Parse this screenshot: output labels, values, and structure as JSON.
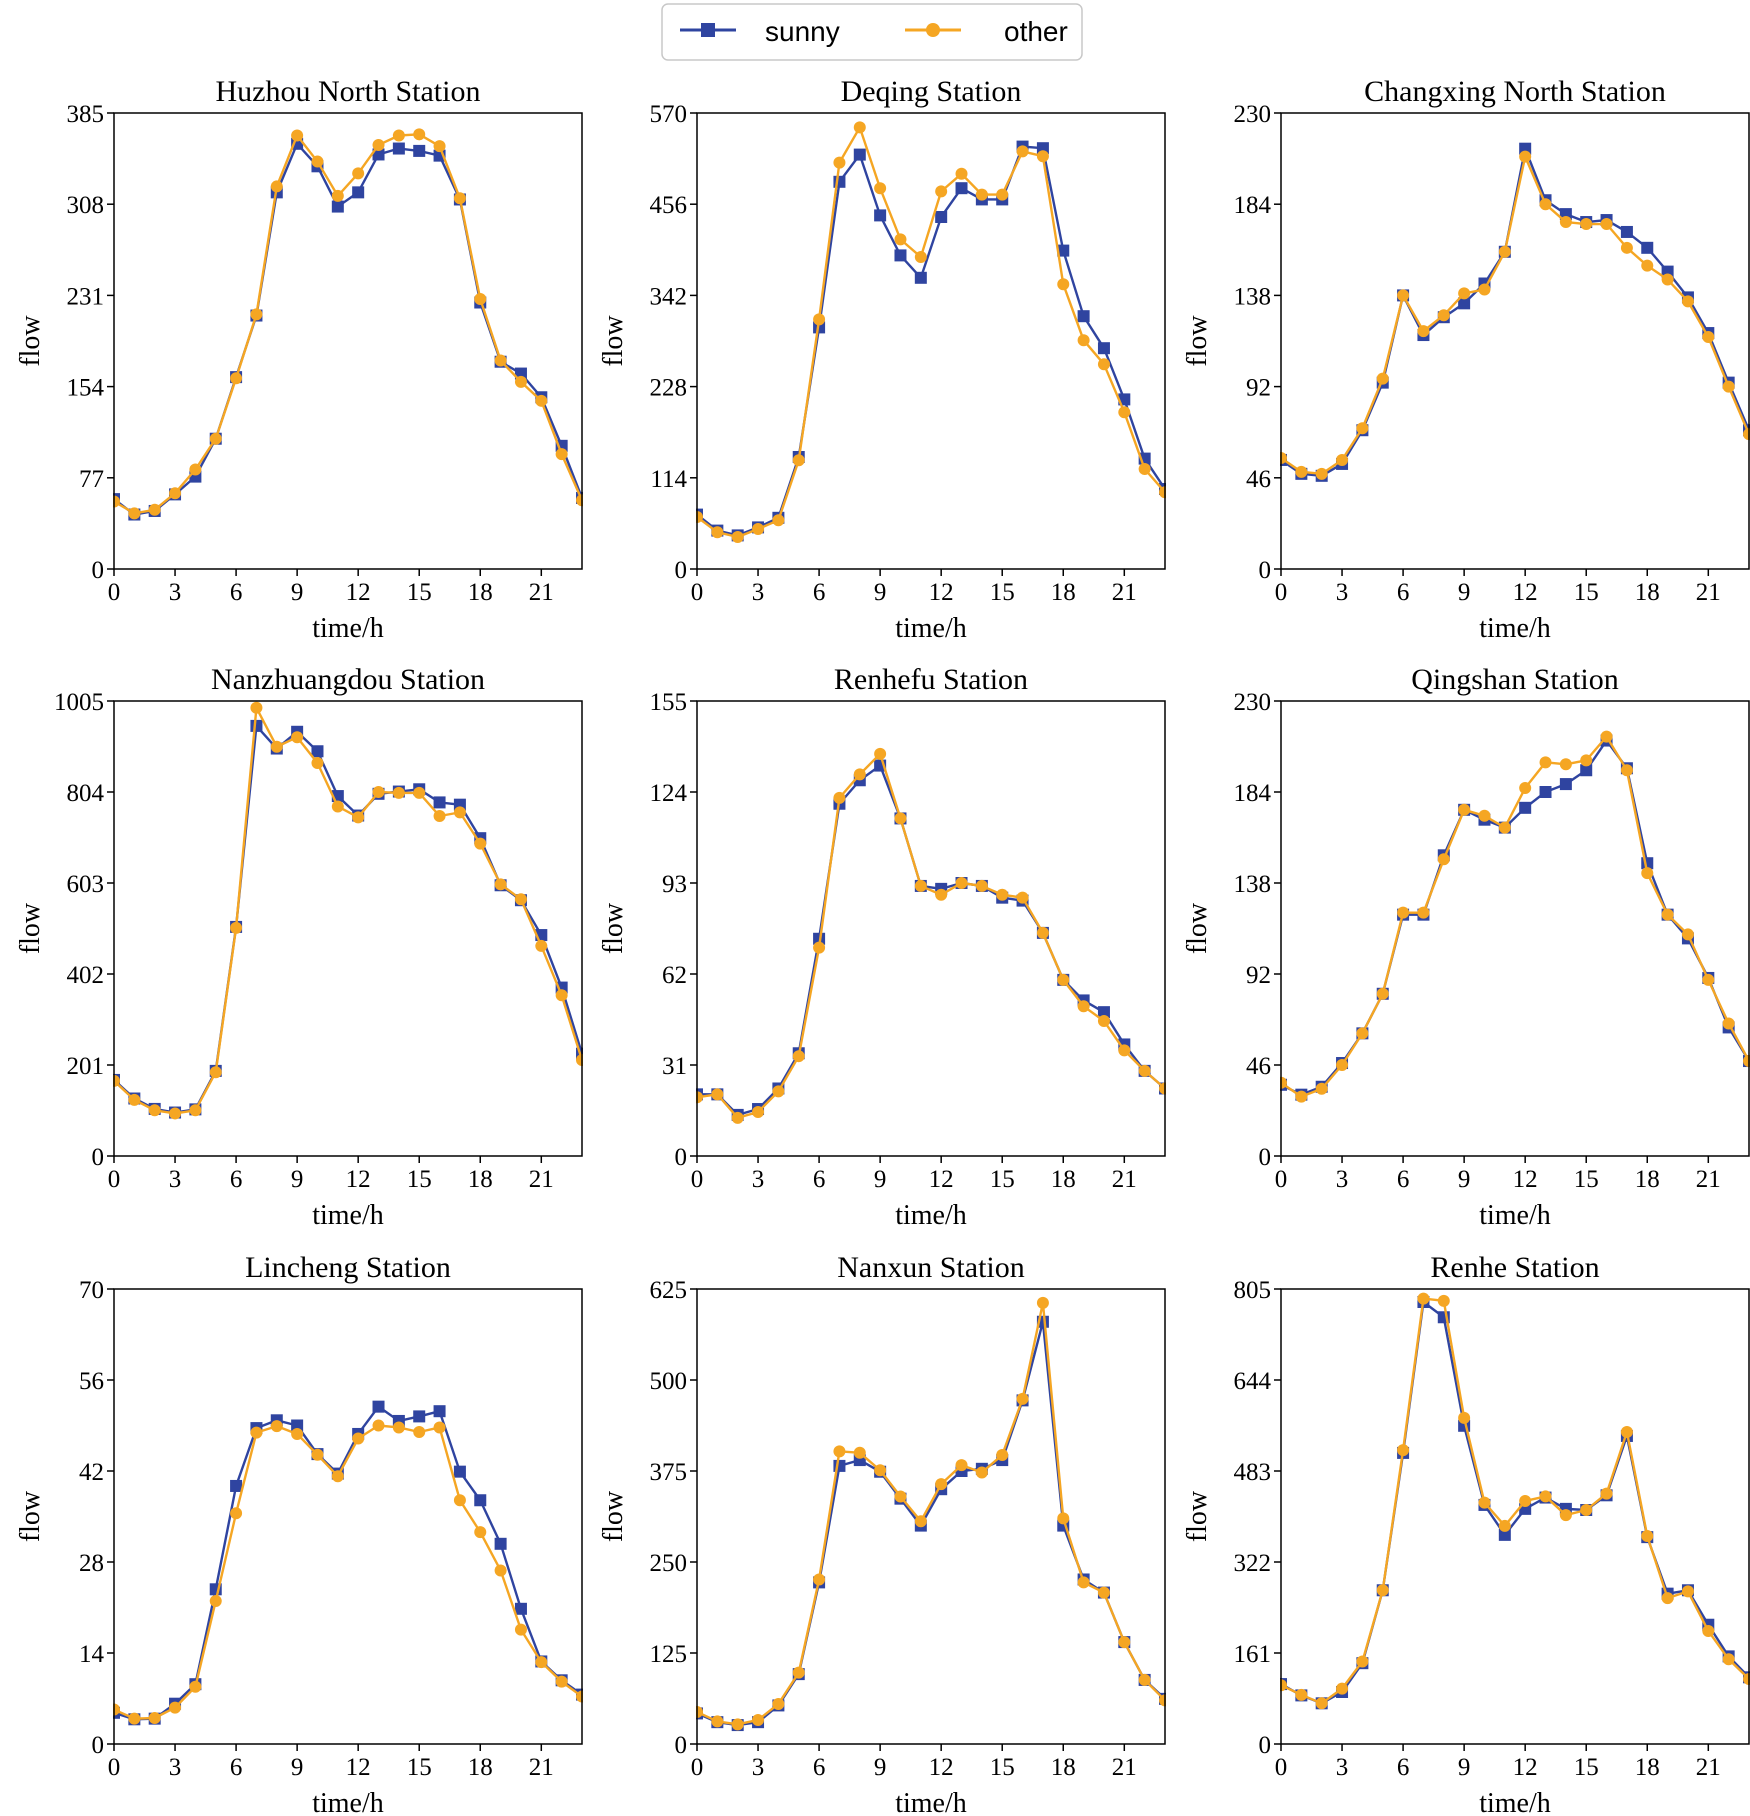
{
  "legend": {
    "position": "top-center",
    "entries": [
      {
        "name": "sunny",
        "color": "#2f44a0",
        "marker": "square"
      },
      {
        "name": "other",
        "color": "#f5a623",
        "marker": "circle"
      }
    ]
  },
  "chart_data": [
    {
      "type": "line",
      "title": "Huzhou North Station",
      "xlabel": "time/h",
      "ylabel": "flow",
      "xlim": [
        0,
        23
      ],
      "xticks": [
        0,
        3,
        6,
        9,
        12,
        15,
        18,
        21
      ],
      "ylim": [
        0,
        385
      ],
      "yticks": [
        0,
        77,
        154,
        231,
        308,
        385
      ],
      "x": [
        0,
        1,
        2,
        3,
        4,
        5,
        6,
        7,
        8,
        9,
        10,
        11,
        12,
        13,
        14,
        15,
        16,
        17,
        18,
        19,
        20,
        21,
        22,
        23
      ],
      "series": [
        {
          "name": "sunny",
          "values": [
            59,
            46,
            49,
            63,
            78,
            110,
            162,
            214,
            318,
            359,
            340,
            306,
            318,
            350,
            355,
            353,
            349,
            312,
            225,
            175,
            165,
            145,
            104,
            60
          ]
        },
        {
          "name": "other",
          "values": [
            57,
            47,
            50,
            64,
            84,
            110,
            161,
            215,
            323,
            366,
            344,
            315,
            334,
            358,
            366,
            367,
            357,
            313,
            228,
            176,
            158,
            142,
            97,
            58
          ]
        }
      ]
    },
    {
      "type": "line",
      "title": "Deqing Station",
      "xlabel": "time/h",
      "ylabel": "flow",
      "xlim": [
        0,
        23
      ],
      "xticks": [
        0,
        3,
        6,
        9,
        12,
        15,
        18,
        21
      ],
      "ylim": [
        0,
        570
      ],
      "yticks": [
        0,
        114,
        228,
        342,
        456,
        570
      ],
      "x": [
        0,
        1,
        2,
        3,
        4,
        5,
        6,
        7,
        8,
        9,
        10,
        11,
        12,
        13,
        14,
        15,
        16,
        17,
        18,
        19,
        20,
        21,
        22,
        23
      ],
      "series": [
        {
          "name": "sunny",
          "values": [
            68,
            48,
            42,
            52,
            64,
            140,
            302,
            484,
            518,
            442,
            392,
            364,
            440,
            476,
            462,
            462,
            528,
            526,
            398,
            316,
            276,
            212,
            138,
            100
          ]
        },
        {
          "name": "other",
          "values": [
            65,
            46,
            40,
            50,
            61,
            136,
            312,
            508,
            552,
            476,
            412,
            390,
            472,
            494,
            468,
            468,
            522,
            516,
            356,
            286,
            256,
            196,
            125,
            96
          ]
        }
      ]
    },
    {
      "type": "line",
      "title": "Changxing North Station",
      "xlabel": "time/h",
      "ylabel": "flow",
      "xlim": [
        0,
        23
      ],
      "xticks": [
        0,
        3,
        6,
        9,
        12,
        15,
        18,
        21
      ],
      "ylim": [
        0,
        230
      ],
      "yticks": [
        0,
        46,
        92,
        138,
        184,
        230
      ],
      "x": [
        0,
        1,
        2,
        3,
        4,
        5,
        6,
        7,
        8,
        9,
        10,
        11,
        12,
        13,
        14,
        15,
        16,
        17,
        18,
        19,
        20,
        21,
        22,
        23
      ],
      "series": [
        {
          "name": "sunny",
          "values": [
            55,
            48,
            47,
            53,
            70,
            94,
            138,
            118,
            127,
            134,
            144,
            160,
            212,
            186,
            179,
            175,
            176,
            170,
            162,
            150,
            137,
            119,
            94,
            70
          ]
        },
        {
          "name": "other",
          "values": [
            56,
            49,
            48,
            55,
            71,
            96,
            138,
            120,
            128,
            139,
            141,
            160,
            208,
            184,
            175,
            174,
            174,
            162,
            153,
            146,
            135,
            117,
            92,
            68
          ]
        }
      ]
    },
    {
      "type": "line",
      "title": "Nanzhuangdou Station",
      "xlabel": "time/h",
      "ylabel": "flow",
      "xlim": [
        0,
        23
      ],
      "xticks": [
        0,
        3,
        6,
        9,
        12,
        15,
        18,
        21
      ],
      "ylim": [
        0,
        1005
      ],
      "yticks": [
        0,
        201,
        402,
        603,
        804,
        1005
      ],
      "x": [
        0,
        1,
        2,
        3,
        4,
        5,
        6,
        7,
        8,
        9,
        10,
        11,
        12,
        13,
        14,
        15,
        16,
        17,
        18,
        19,
        20,
        21,
        22,
        23
      ],
      "series": [
        {
          "name": "sunny",
          "values": [
            168,
            127,
            104,
            96,
            103,
            188,
            506,
            950,
            900,
            937,
            894,
            795,
            752,
            800,
            805,
            810,
            781,
            776,
            702,
            598,
            565,
            488,
            372,
            226
          ]
        },
        {
          "name": "other",
          "values": [
            166,
            124,
            101,
            94,
            101,
            185,
            504,
            990,
            904,
            925,
            868,
            772,
            748,
            804,
            802,
            802,
            751,
            759,
            690,
            600,
            567,
            464,
            355,
            212
          ]
        }
      ]
    },
    {
      "type": "line",
      "title": "Renhefu Station",
      "xlabel": "time/h",
      "ylabel": "flow",
      "xlim": [
        0,
        23
      ],
      "xticks": [
        0,
        3,
        6,
        9,
        12,
        15,
        18,
        21
      ],
      "ylim": [
        0,
        155
      ],
      "yticks": [
        0,
        31,
        62,
        93,
        124,
        155
      ],
      "x": [
        0,
        1,
        2,
        3,
        4,
        5,
        6,
        7,
        8,
        9,
        10,
        11,
        12,
        13,
        14,
        15,
        16,
        17,
        18,
        19,
        20,
        21,
        22,
        23
      ],
      "series": [
        {
          "name": "sunny",
          "values": [
            21,
            21,
            14,
            16,
            23,
            35,
            74,
            120,
            128,
            133,
            115,
            92,
            91,
            93,
            92,
            88,
            87,
            76,
            60,
            53,
            49,
            38,
            29,
            23
          ]
        },
        {
          "name": "other",
          "values": [
            20,
            21,
            13,
            15,
            22,
            34,
            71,
            122,
            130,
            137,
            115,
            92,
            89,
            93,
            92,
            89,
            88,
            76,
            60,
            51,
            46,
            36,
            29,
            23
          ]
        }
      ]
    },
    {
      "type": "line",
      "title": "Qingshan Station",
      "xlabel": "time/h",
      "ylabel": "flow",
      "xlim": [
        0,
        23
      ],
      "xticks": [
        0,
        3,
        6,
        9,
        12,
        15,
        18,
        21
      ],
      "ylim": [
        0,
        230
      ],
      "yticks": [
        0,
        46,
        92,
        138,
        184,
        230
      ],
      "x": [
        0,
        1,
        2,
        3,
        4,
        5,
        6,
        7,
        8,
        9,
        10,
        11,
        12,
        13,
        14,
        15,
        16,
        17,
        18,
        19,
        20,
        21,
        22,
        23
      ],
      "series": [
        {
          "name": "sunny",
          "values": [
            36,
            31,
            35,
            47,
            62,
            82,
            122,
            122,
            152,
            175,
            170,
            166,
            176,
            184,
            188,
            195,
            210,
            196,
            148,
            122,
            110,
            90,
            65,
            48
          ]
        },
        {
          "name": "other",
          "values": [
            37,
            30,
            34,
            46,
            62,
            82,
            123,
            123,
            150,
            175,
            172,
            166,
            186,
            199,
            198,
            200,
            212,
            195,
            143,
            122,
            112,
            89,
            67,
            48
          ]
        }
      ]
    },
    {
      "type": "line",
      "title": "Lincheng Station",
      "xlabel": "time/h",
      "ylabel": "flow",
      "xlim": [
        0,
        23
      ],
      "xticks": [
        0,
        3,
        6,
        9,
        12,
        15,
        18,
        21
      ],
      "ylim": [
        0,
        70
      ],
      "yticks": [
        0,
        14,
        28,
        42,
        56,
        70
      ],
      "x": [
        0,
        1,
        2,
        3,
        4,
        5,
        6,
        7,
        8,
        9,
        10,
        11,
        12,
        13,
        14,
        15,
        16,
        17,
        18,
        19,
        20,
        21,
        22,
        23
      ],
      "series": [
        {
          "name": "sunny",
          "values": [
            4.8,
            3.8,
            3.9,
            6.2,
            9.2,
            23.8,
            39.7,
            48.6,
            49.8,
            49.0,
            44.6,
            41.6,
            47.7,
            51.9,
            49.7,
            50.4,
            51.2,
            41.9,
            37.5,
            30.8,
            20.8,
            12.7,
            9.8,
            7.6
          ]
        },
        {
          "name": "other",
          "values": [
            5.3,
            3.9,
            4.0,
            5.6,
            8.8,
            22.0,
            35.5,
            47.9,
            48.9,
            47.7,
            44.5,
            41.2,
            47.0,
            49.0,
            48.7,
            48.0,
            48.7,
            37.5,
            32.6,
            26.7,
            17.6,
            12.6,
            9.6,
            7.3
          ]
        }
      ]
    },
    {
      "type": "line",
      "title": "Nanxun Station",
      "xlabel": "time/h",
      "ylabel": "flow",
      "xlim": [
        0,
        23
      ],
      "xticks": [
        0,
        3,
        6,
        9,
        12,
        15,
        18,
        21
      ],
      "ylim": [
        0,
        625
      ],
      "yticks": [
        0,
        125,
        250,
        375,
        500,
        625
      ],
      "x": [
        0,
        1,
        2,
        3,
        4,
        5,
        6,
        7,
        8,
        9,
        10,
        11,
        12,
        13,
        14,
        15,
        16,
        17,
        18,
        19,
        20,
        21,
        22,
        23
      ],
      "series": [
        {
          "name": "sunny",
          "values": [
            42,
            30,
            26,
            30,
            53,
            96,
            222,
            382,
            390,
            374,
            337,
            300,
            350,
            375,
            378,
            390,
            472,
            580,
            300,
            226,
            208,
            140,
            88,
            62
          ]
        },
        {
          "name": "other",
          "values": [
            44,
            31,
            27,
            33,
            55,
            98,
            226,
            402,
            400,
            376,
            340,
            306,
            357,
            383,
            373,
            397,
            474,
            606,
            310,
            222,
            208,
            140,
            88,
            60
          ]
        }
      ]
    },
    {
      "type": "line",
      "title": "Renhe Station",
      "xlabel": "time/h",
      "ylabel": "flow",
      "xlim": [
        0,
        23
      ],
      "xticks": [
        0,
        3,
        6,
        9,
        12,
        15,
        18,
        21
      ],
      "ylim": [
        0,
        805
      ],
      "yticks": [
        0,
        161,
        322,
        483,
        644,
        805
      ],
      "x": [
        0,
        1,
        2,
        3,
        4,
        5,
        6,
        7,
        8,
        9,
        10,
        11,
        12,
        13,
        14,
        15,
        16,
        17,
        18,
        19,
        20,
        21,
        22,
        23
      ],
      "series": [
        {
          "name": "sunny",
          "values": [
            106,
            86,
            72,
            92,
            143,
            272,
            515,
            782,
            755,
            563,
            423,
            370,
            416,
            436,
            416,
            414,
            440,
            545,
            366,
            266,
            272,
            211,
            155,
            118
          ]
        },
        {
          "name": "other",
          "values": [
            104,
            87,
            72,
            98,
            146,
            272,
            520,
            788,
            784,
            577,
            427,
            386,
            430,
            438,
            405,
            414,
            443,
            552,
            368,
            258,
            270,
            200,
            150,
            115
          ]
        }
      ]
    }
  ]
}
